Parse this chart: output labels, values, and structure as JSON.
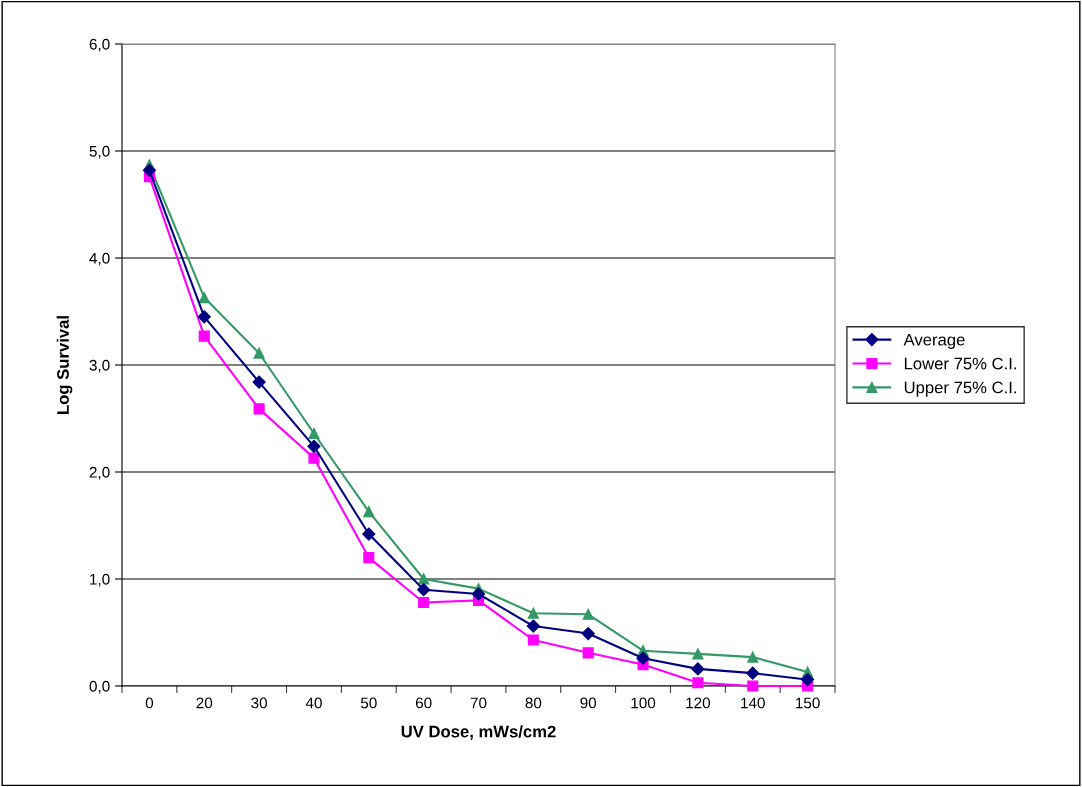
{
  "chart_data": {
    "type": "line",
    "xlabel": "UV Dose, mWs/cm2",
    "ylabel": "Log Survival",
    "categories": [
      "0",
      "20",
      "30",
      "40",
      "50",
      "60",
      "70",
      "80",
      "90",
      "100",
      "120",
      "140",
      "150"
    ],
    "series": [
      {
        "name": "Average",
        "color": "#000080",
        "marker": "diamond",
        "values": [
          4.82,
          3.45,
          2.84,
          2.24,
          1.42,
          0.9,
          0.86,
          0.56,
          0.49,
          0.26,
          0.16,
          0.12,
          0.06
        ]
      },
      {
        "name": "Lower 75% C.I.",
        "color": "#ff00ff",
        "marker": "square",
        "values": [
          4.76,
          3.27,
          2.59,
          2.13,
          1.2,
          0.78,
          0.8,
          0.43,
          0.31,
          0.2,
          0.03,
          0.0,
          0.0
        ]
      },
      {
        "name": "Upper 75% C.I.",
        "color": "#339966",
        "marker": "triangle",
        "values": [
          4.87,
          3.63,
          3.11,
          2.36,
          1.63,
          1.0,
          0.91,
          0.68,
          0.67,
          0.33,
          0.3,
          0.27,
          0.13
        ]
      }
    ],
    "ylim": [
      0,
      6
    ],
    "yticks": [
      {
        "value": 0,
        "label": "0,0"
      },
      {
        "value": 1,
        "label": "1,0"
      },
      {
        "value": 2,
        "label": "2,0"
      },
      {
        "value": 3,
        "label": "3,0"
      },
      {
        "value": 4,
        "label": "4,0"
      },
      {
        "value": 5,
        "label": "5,0"
      },
      {
        "value": 6,
        "label": "6,0"
      }
    ],
    "grid": "y",
    "legend": "right"
  }
}
